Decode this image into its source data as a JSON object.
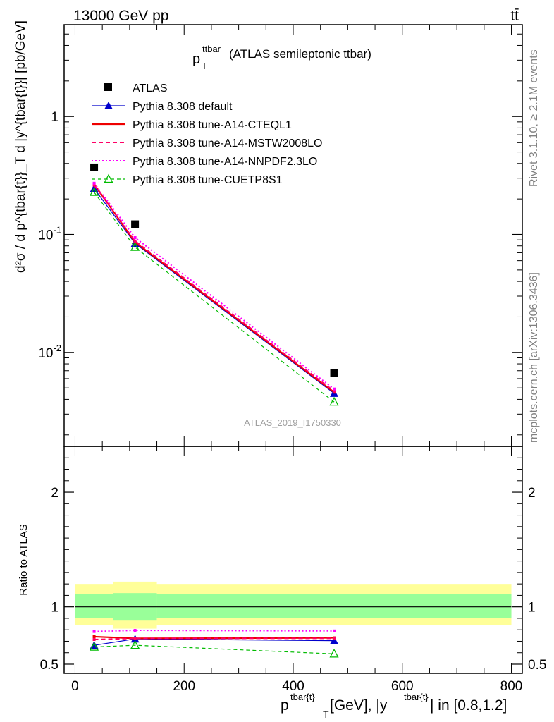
{
  "header": {
    "energy_label": "13000 GeV pp",
    "process_label": "tt̄"
  },
  "side_labels": {
    "rivet": "Rivet 3.1.10, ≥ 2.1M events",
    "mcplots": "mcplots.cern.ch [arXiv:1306.3436]"
  },
  "watermark": "ATLAS_2019_I1750330",
  "chart_data": [
    {
      "type": "scatter",
      "panel": "main",
      "title_main": "p",
      "title_sup": "ttbar",
      "title_sub": "T",
      "title_rest": "(ATLAS semileptonic ttbar)",
      "ylabel": "d²σ / d p^{tbar{t}}_T d |y^{tbar{t}}| [pb/GeV]",
      "yscale": "log",
      "ylim": [
        0.0016,
        6.0
      ],
      "xlim": [
        -20,
        820
      ],
      "y_tick_labels": [
        "1",
        "10^-1",
        "10^-2"
      ],
      "legend_position": "top-left",
      "x": [
        35,
        110,
        475
      ],
      "series": [
        {
          "name": "ATLAS",
          "color": "#000000",
          "style": "data",
          "marker": "square",
          "values": [
            0.37,
            0.122,
            0.0067
          ]
        },
        {
          "name": "Pythia 8.308 default",
          "color": "#0000cc",
          "style": "solid-thin",
          "marker": "triangle",
          "values": [
            0.245,
            0.084,
            0.0045
          ]
        },
        {
          "name": "Pythia 8.308 tune-A14-CTEQL1",
          "color": "#ee0000",
          "style": "solid-thick",
          "marker": "none",
          "values": [
            0.267,
            0.086,
            0.0046
          ]
        },
        {
          "name": "Pythia 8.308 tune-A14-MSTW2008LO",
          "color": "#ff0066",
          "style": "dashed",
          "marker": "none",
          "values": [
            0.262,
            0.088,
            0.0047
          ]
        },
        {
          "name": "Pythia 8.308 tune-A14-NNPDF2.3LO",
          "color": "#ff00ff",
          "style": "dotted",
          "marker": "none",
          "values": [
            0.272,
            0.094,
            0.0049
          ]
        },
        {
          "name": "Pythia 8.308 tune-CUETP8S1",
          "color": "#00bb00",
          "style": "dashed-thin",
          "marker": "open-triangle",
          "values": [
            0.228,
            0.078,
            0.0038
          ]
        }
      ]
    },
    {
      "type": "line",
      "panel": "ratio",
      "ylabel": "Ratio to ATLAS",
      "ylim": [
        0.42,
        2.4
      ],
      "xlim": [
        -20,
        820
      ],
      "x_tick_labels": [
        "0",
        "200",
        "400",
        "600",
        "800"
      ],
      "y_tick_labels": [
        "0.5",
        "1",
        "2"
      ],
      "xlabel_main": "p",
      "xlabel_sup1": "tbar{t}",
      "xlabel_sub": "T",
      "xlabel_rest1": " [GeV], |y",
      "xlabel_sup2": "tbar{t}",
      "xlabel_rest2": "| in [0.8,1.2]",
      "bands": {
        "edges": [
          0,
          70,
          150,
          800
        ],
        "green_lo": [
          0.9,
          0.88,
          0.9
        ],
        "green_hi": [
          1.11,
          1.12,
          1.11
        ],
        "yellow_lo": [
          0.84,
          0.81,
          0.84
        ],
        "yellow_hi": [
          1.2,
          1.22,
          1.2
        ]
      },
      "x": [
        35,
        110,
        475
      ],
      "series": [
        {
          "name": "Pythia 8.308 default",
          "color": "#0000cc",
          "style": "solid-thin",
          "marker": "triangle",
          "values": [
            0.665,
            0.72,
            0.705
          ]
        },
        {
          "name": "Pythia 8.308 tune-A14-CTEQL1",
          "color": "#ee0000",
          "style": "solid-thick",
          "marker": "none",
          "values": [
            0.74,
            0.725,
            0.73
          ]
        },
        {
          "name": "Pythia 8.308 tune-A14-MSTW2008LO",
          "color": "#ff0066",
          "style": "dashed",
          "marker": "none",
          "values": [
            0.715,
            0.725,
            0.725
          ]
        },
        {
          "name": "Pythia 8.308 tune-A14-NNPDF2.3LO",
          "color": "#ff00ff",
          "style": "dotted",
          "marker": "none",
          "values": [
            0.785,
            0.795,
            0.79
          ]
        },
        {
          "name": "Pythia 8.308 tune-CUETP8S1",
          "color": "#00bb00",
          "style": "dashed-thin",
          "marker": "open-triangle",
          "values": [
            0.65,
            0.665,
            0.59
          ]
        }
      ]
    }
  ]
}
